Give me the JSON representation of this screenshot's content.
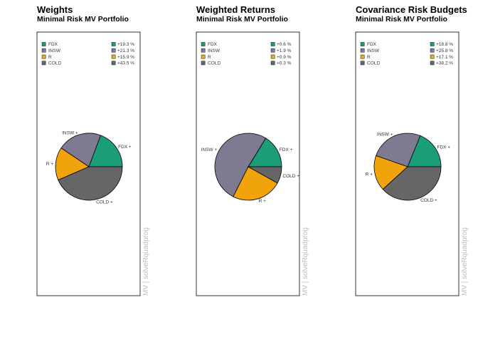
{
  "chart_data": [
    {
      "type": "pie",
      "title": "Weights",
      "subtitle": "Minimal Risk MV Portfolio",
      "side_label": "MV | solveRquadprog",
      "categories": [
        "FDX",
        "INSW",
        "R",
        "COLD"
      ],
      "values": [
        19.3,
        21.3,
        15.9,
        43.5
      ],
      "value_labels": [
        "+19.3 %",
        "+21.3 %",
        "+15.9 %",
        "+43.5 %"
      ],
      "colors": [
        "#1b9e77",
        "#7d7a92",
        "#f0a30a",
        "#666666"
      ],
      "slice_labels": [
        "FDX +",
        "INSW +",
        "R +",
        "COLD +"
      ]
    },
    {
      "type": "pie",
      "title": "Weighted Returns",
      "subtitle": "Minimal Risk MV Portfolio",
      "side_label": "MV | solveRquadprog",
      "categories": [
        "FDX",
        "INSW",
        "R",
        "COLD"
      ],
      "values": [
        0.6,
        1.9,
        0.9,
        0.3
      ],
      "value_labels": [
        "+0.6 %",
        "+1.9 %",
        "+0.9 %",
        "+0.3 %"
      ],
      "colors": [
        "#1b9e77",
        "#7d7a92",
        "#f0a30a",
        "#666666"
      ],
      "slice_labels": [
        "FDX +",
        "INSW +",
        "R +",
        "COLD +"
      ]
    },
    {
      "type": "pie",
      "title": "Covariance Risk Budgets",
      "subtitle": "Minimal Risk MV Portfolio",
      "side_label": "MV | solveRquadprog",
      "categories": [
        "FDX",
        "INSW",
        "R",
        "COLD"
      ],
      "values": [
        18.8,
        25.8,
        17.1,
        38.2
      ],
      "value_labels": [
        "+18.8 %",
        "+25.8 %",
        "+17.1 %",
        "+38.2 %"
      ],
      "colors": [
        "#1b9e77",
        "#7d7a92",
        "#f0a30a",
        "#666666"
      ],
      "slice_labels": [
        "FDX +",
        "INSW +",
        "R +",
        "COLD +"
      ]
    }
  ]
}
